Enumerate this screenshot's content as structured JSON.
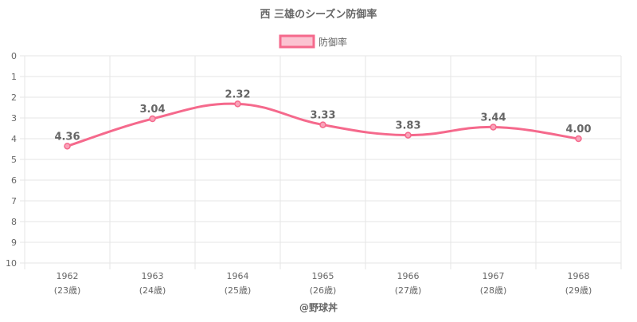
{
  "chart_data": {
    "type": "line",
    "title": "西 三雄のシーズン防御率",
    "legend": {
      "label": "防御率",
      "position": "top"
    },
    "categories": [
      "1962",
      "1963",
      "1964",
      "1965",
      "1966",
      "1967",
      "1968"
    ],
    "category_sublabels": [
      "(23歳)",
      "(24歳)",
      "(25歳)",
      "(26歳)",
      "(27歳)",
      "(28歳)",
      "(29歳)"
    ],
    "series": [
      {
        "name": "防御率",
        "values": [
          4.36,
          3.04,
          2.32,
          3.33,
          3.83,
          3.44,
          4.0
        ],
        "labels": [
          "4.36",
          "3.04",
          "2.32",
          "3.33",
          "3.83",
          "3.44",
          "4.00"
        ]
      }
    ],
    "y_axis": {
      "min": 0,
      "max": 10,
      "reversed": true,
      "ticks": [
        0,
        1,
        2,
        3,
        4,
        5,
        6,
        7,
        8,
        9,
        10
      ]
    },
    "grid": true,
    "footer": "@野球丼",
    "colors": {
      "line": "#f5698c",
      "point_fill": "#f9a3b9",
      "grid": "#e6e6e6",
      "text": "#666666"
    }
  }
}
